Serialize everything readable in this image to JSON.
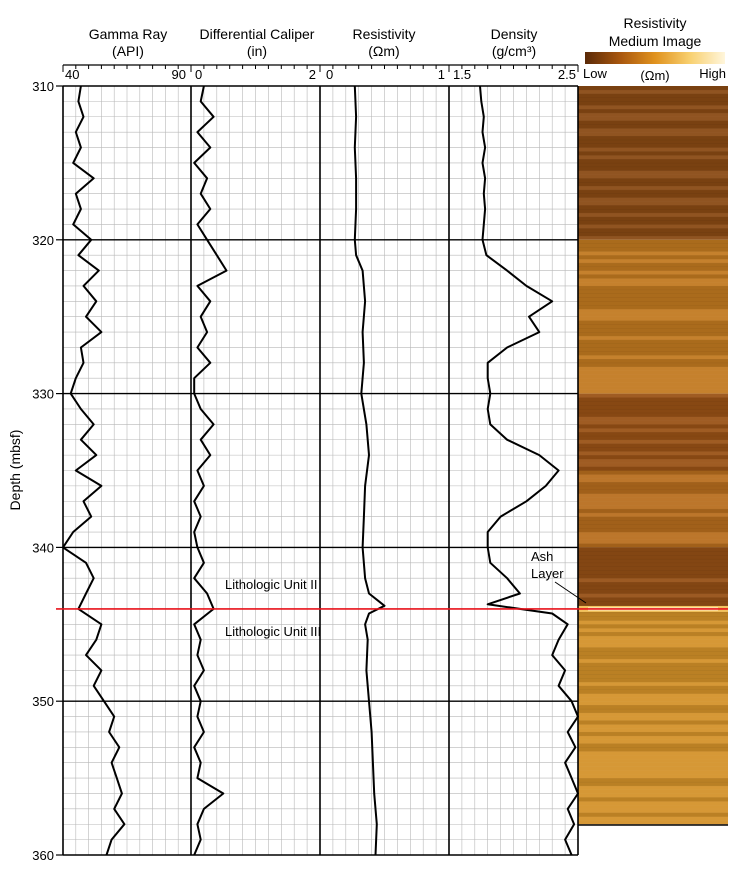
{
  "chart_data": {
    "type": "line",
    "y_axis": {
      "label": "Depth (mbsf)",
      "range": [
        310,
        360
      ],
      "ticks": [
        "310",
        "320",
        "330",
        "340",
        "350",
        "360"
      ],
      "inverted": true
    },
    "tracks": [
      {
        "name": "Gamma Ray",
        "unit": "(API)",
        "range": [
          40,
          90
        ],
        "tick_labels": [
          "40",
          "90"
        ],
        "points": [
          [
            310,
            47
          ],
          [
            311,
            46
          ],
          [
            312,
            48
          ],
          [
            313,
            45
          ],
          [
            314,
            47
          ],
          [
            315,
            44
          ],
          [
            316,
            52
          ],
          [
            317,
            45
          ],
          [
            318,
            47
          ],
          [
            319,
            44
          ],
          [
            320,
            51
          ],
          [
            321,
            46
          ],
          [
            322,
            54
          ],
          [
            323,
            48
          ],
          [
            324,
            53
          ],
          [
            325,
            49
          ],
          [
            326,
            55
          ],
          [
            327,
            47
          ],
          [
            328,
            48
          ],
          [
            329,
            45
          ],
          [
            330,
            43
          ],
          [
            331,
            47
          ],
          [
            332,
            52
          ],
          [
            333,
            47
          ],
          [
            334,
            53
          ],
          [
            335,
            45
          ],
          [
            336,
            55
          ],
          [
            337,
            48
          ],
          [
            338,
            51
          ],
          [
            339,
            44
          ],
          [
            340,
            40
          ],
          [
            341,
            49
          ],
          [
            342,
            52
          ],
          [
            343,
            49
          ],
          [
            344,
            46
          ],
          [
            345,
            55
          ],
          [
            346,
            53
          ],
          [
            347,
            49
          ],
          [
            348,
            55
          ],
          [
            349,
            52
          ],
          [
            350,
            56
          ],
          [
            351,
            60
          ],
          [
            352,
            58
          ],
          [
            353,
            62
          ],
          [
            354,
            59
          ],
          [
            355,
            61
          ],
          [
            356,
            63
          ],
          [
            357,
            60
          ],
          [
            358,
            64
          ],
          [
            359,
            59
          ],
          [
            360,
            57
          ]
        ]
      },
      {
        "name": "Differential Caliper",
        "unit": "(in)",
        "range": [
          0,
          2
        ],
        "tick_labels": [
          "0",
          "2"
        ],
        "points": [
          [
            310,
            0.2
          ],
          [
            311,
            0.15
          ],
          [
            312,
            0.35
          ],
          [
            313,
            0.1
          ],
          [
            314,
            0.3
          ],
          [
            315,
            0.05
          ],
          [
            316,
            0.25
          ],
          [
            317,
            0.15
          ],
          [
            318,
            0.3
          ],
          [
            319,
            0.1
          ],
          [
            320,
            0.25
          ],
          [
            321,
            0.4
          ],
          [
            322,
            0.55
          ],
          [
            323,
            0.1
          ],
          [
            324,
            0.3
          ],
          [
            325,
            0.15
          ],
          [
            326,
            0.25
          ],
          [
            327,
            0.1
          ],
          [
            328,
            0.3
          ],
          [
            329,
            0.05
          ],
          [
            330,
            0.05
          ],
          [
            331,
            0.15
          ],
          [
            332,
            0.35
          ],
          [
            333,
            0.15
          ],
          [
            334,
            0.3
          ],
          [
            335,
            0.1
          ],
          [
            336,
            0.2
          ],
          [
            337,
            0.05
          ],
          [
            338,
            0.15
          ],
          [
            339,
            0.05
          ],
          [
            340,
            0.1
          ],
          [
            341,
            0.2
          ],
          [
            342,
            0.05
          ],
          [
            343,
            0.25
          ],
          [
            344,
            0.35
          ],
          [
            345,
            0.05
          ],
          [
            346,
            0.15
          ],
          [
            347,
            0.1
          ],
          [
            348,
            0.2
          ],
          [
            349,
            0.05
          ],
          [
            350,
            0.15
          ],
          [
            351,
            0.1
          ],
          [
            352,
            0.2
          ],
          [
            353,
            0.05
          ],
          [
            354,
            0.15
          ],
          [
            355,
            0.1
          ],
          [
            356,
            0.5
          ],
          [
            357,
            0.2
          ],
          [
            358,
            0.1
          ],
          [
            359,
            0.15
          ],
          [
            360,
            0.05
          ]
        ]
      },
      {
        "name": "Resistivity",
        "unit": "(Ωm)",
        "range": [
          0,
          1
        ],
        "tick_labels": [
          "0",
          "1"
        ],
        "points": [
          [
            310,
            0.27
          ],
          [
            312,
            0.28
          ],
          [
            314,
            0.27
          ],
          [
            316,
            0.28
          ],
          [
            318,
            0.28
          ],
          [
            320,
            0.27
          ],
          [
            321,
            0.28
          ],
          [
            322,
            0.33
          ],
          [
            324,
            0.35
          ],
          [
            326,
            0.33
          ],
          [
            328,
            0.34
          ],
          [
            330,
            0.32
          ],
          [
            332,
            0.36
          ],
          [
            334,
            0.38
          ],
          [
            336,
            0.35
          ],
          [
            338,
            0.34
          ],
          [
            340,
            0.33
          ],
          [
            342,
            0.35
          ],
          [
            343,
            0.38
          ],
          [
            343.8,
            0.5
          ],
          [
            344.3,
            0.38
          ],
          [
            345,
            0.35
          ],
          [
            346,
            0.37
          ],
          [
            348,
            0.36
          ],
          [
            350,
            0.38
          ],
          [
            352,
            0.4
          ],
          [
            354,
            0.41
          ],
          [
            356,
            0.42
          ],
          [
            358,
            0.44
          ],
          [
            360,
            0.43
          ]
        ]
      },
      {
        "name": "Density",
        "unit": "(g/cm³)",
        "range": [
          1.5,
          2.5
        ],
        "tick_labels": [
          "1.5",
          "2.5"
        ],
        "points": [
          [
            310,
            1.74
          ],
          [
            311,
            1.75
          ],
          [
            312,
            1.77
          ],
          [
            313,
            1.76
          ],
          [
            314,
            1.78
          ],
          [
            315,
            1.76
          ],
          [
            316,
            1.78
          ],
          [
            317,
            1.77
          ],
          [
            318,
            1.78
          ],
          [
            319,
            1.77
          ],
          [
            320,
            1.76
          ],
          [
            321,
            1.79
          ],
          [
            322,
            1.95
          ],
          [
            323,
            2.1
          ],
          [
            324,
            2.3
          ],
          [
            325,
            2.12
          ],
          [
            326,
            2.2
          ],
          [
            327,
            1.95
          ],
          [
            328,
            1.8
          ],
          [
            329,
            1.8
          ],
          [
            330,
            1.82
          ],
          [
            331,
            1.8
          ],
          [
            332,
            1.82
          ],
          [
            333,
            1.95
          ],
          [
            334,
            2.2
          ],
          [
            335,
            2.35
          ],
          [
            336,
            2.25
          ],
          [
            337,
            2.1
          ],
          [
            338,
            1.9
          ],
          [
            339,
            1.8
          ],
          [
            340,
            1.8
          ],
          [
            341,
            1.82
          ],
          [
            342,
            1.95
          ],
          [
            343,
            2.05
          ],
          [
            343.7,
            1.8
          ],
          [
            344.3,
            2.3
          ],
          [
            345,
            2.42
          ],
          [
            346,
            2.35
          ],
          [
            347,
            2.3
          ],
          [
            348,
            2.4
          ],
          [
            349,
            2.35
          ],
          [
            350,
            2.45
          ],
          [
            351,
            2.5
          ],
          [
            352,
            2.42
          ],
          [
            353,
            2.48
          ],
          [
            354,
            2.4
          ],
          [
            355,
            2.45
          ],
          [
            356,
            2.5
          ],
          [
            357,
            2.42
          ],
          [
            358,
            2.47
          ],
          [
            359,
            2.4
          ],
          [
            360,
            2.45
          ]
        ]
      }
    ],
    "image_track": {
      "title_line1": "Resistivity",
      "title_line2": "Medium Image",
      "colorbar": {
        "low": "Low",
        "high": "High",
        "unit": "(Ωm)",
        "colors": [
          "#5a2a08",
          "#a8560e",
          "#e0921e",
          "#f8d070",
          "#fff6dc"
        ]
      },
      "bands": [
        {
          "from": 310,
          "to": 320,
          "color": "#8a4a14"
        },
        {
          "from": 320,
          "to": 330,
          "color": "#c27a20"
        },
        {
          "from": 330,
          "to": 335,
          "color": "#9a5216"
        },
        {
          "from": 335,
          "to": 340,
          "color": "#b86e1e"
        },
        {
          "from": 340,
          "to": 344,
          "color": "#965016"
        },
        {
          "from": 344,
          "to": 358,
          "color": "#d4922a"
        }
      ]
    },
    "annotations": [
      {
        "text": "Lithologic Unit II",
        "color": "#e8131b"
      },
      {
        "text": "Lithologic Unit III",
        "color": "#e8131b"
      }
    ],
    "ash_label": [
      "Ash",
      "Layer"
    ],
    "boundary_depth": 344,
    "grid": true
  }
}
